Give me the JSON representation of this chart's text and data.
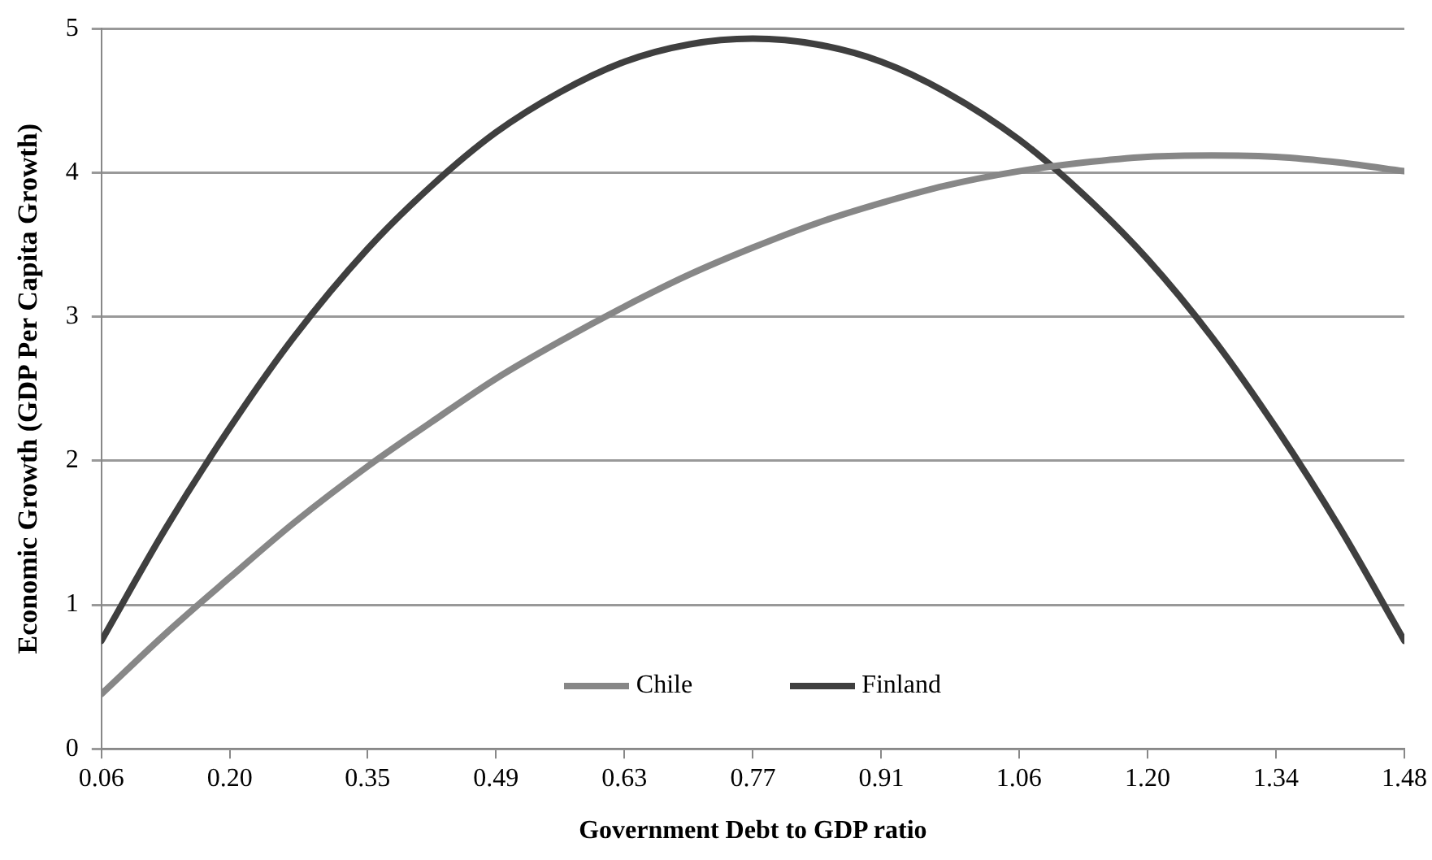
{
  "chart_data": {
    "type": "line",
    "xlabel": "Government Debt to GDP ratio",
    "ylabel": "Economic Growth (GDP Per Capita Growth)",
    "x": [
      0.06,
      0.13,
      0.2,
      0.27,
      0.35,
      0.42,
      0.49,
      0.56,
      0.63,
      0.7,
      0.77,
      0.84,
      0.91,
      0.98,
      1.06,
      1.13,
      1.2,
      1.27,
      1.34,
      1.41,
      1.48
    ],
    "series": [
      {
        "name": "Chile",
        "color": "#878787",
        "values": [
          0.38,
          0.8,
          1.19,
          1.57,
          1.96,
          2.27,
          2.57,
          2.83,
          3.07,
          3.29,
          3.48,
          3.65,
          3.79,
          3.91,
          4.01,
          4.07,
          4.11,
          4.12,
          4.11,
          4.07,
          4.01
        ]
      },
      {
        "name": "Finland",
        "color": "#3f3f3f",
        "values": [
          0.75,
          1.53,
          2.23,
          2.86,
          3.47,
          3.91,
          4.28,
          4.56,
          4.77,
          4.89,
          4.93,
          4.89,
          4.77,
          4.56,
          4.23,
          3.85,
          3.4,
          2.86,
          2.23,
          1.53,
          0.75
        ]
      }
    ],
    "xlim": [
      0.06,
      1.48
    ],
    "xticks": [
      {
        "value": 0.06,
        "label": "0.06"
      },
      {
        "value": 0.2,
        "label": "0.20"
      },
      {
        "value": 0.35,
        "label": "0.35"
      },
      {
        "value": 0.49,
        "label": "0.49"
      },
      {
        "value": 0.63,
        "label": "0.63"
      },
      {
        "value": 0.77,
        "label": "0.77"
      },
      {
        "value": 0.91,
        "label": "0.91"
      },
      {
        "value": 1.06,
        "label": "1.06"
      },
      {
        "value": 1.2,
        "label": "1.20"
      },
      {
        "value": 1.34,
        "label": "1.34"
      },
      {
        "value": 1.48,
        "label": "1.48"
      }
    ],
    "ylim": [
      0,
      5
    ],
    "yticks": [
      0,
      1,
      2,
      3,
      4,
      5
    ],
    "grid": "y",
    "legend": "bottom",
    "marker": "none",
    "line_style": "solid"
  }
}
